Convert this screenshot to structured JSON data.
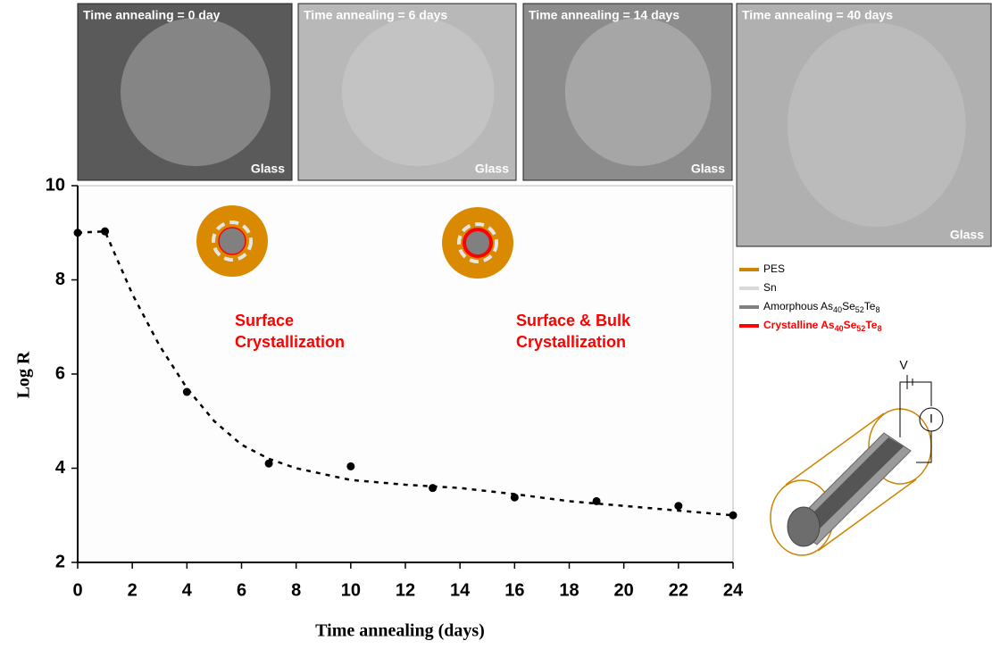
{
  "chart_data": {
    "type": "scatter",
    "xlabel": "Time annealing (days)",
    "ylabel": "Log R",
    "x": [
      0,
      1,
      4,
      7,
      10,
      13,
      16,
      19,
      22,
      24
    ],
    "values": [
      9.0,
      9.03,
      5.62,
      4.1,
      4.04,
      3.58,
      3.38,
      3.3,
      3.2,
      3.0
    ],
    "color": "#000000",
    "fit": {
      "x": [
        0,
        1,
        2,
        3,
        4,
        5,
        6,
        7,
        8,
        10,
        12,
        14,
        16,
        18,
        20,
        22,
        24
      ],
      "values": [
        9.0,
        9.03,
        7.7,
        6.6,
        5.7,
        5.0,
        4.5,
        4.2,
        4.0,
        3.75,
        3.65,
        3.58,
        3.45,
        3.3,
        3.2,
        3.1,
        3.0
      ]
    },
    "xlim": [
      0,
      24
    ],
    "xticks": [
      0,
      2,
      4,
      6,
      8,
      10,
      12,
      14,
      16,
      18,
      20,
      22,
      24
    ],
    "ylim": [
      2,
      10
    ],
    "yticks": [
      2,
      4,
      6,
      8,
      10
    ],
    "annotations": [
      [
        "Surface",
        "Crystallization"
      ],
      [
        "Surface & Bulk",
        "Crystallization"
      ]
    ],
    "images": [
      {
        "title": "Time annealing = 0 day",
        "substrate": "Glass"
      },
      {
        "title": "Time annealing = 6 days",
        "substrate": "Glass"
      },
      {
        "title": "Time annealing = 14 days",
        "substrate": "Glass"
      },
      {
        "title": "Time annealing = 40 days",
        "substrate": "Glass"
      }
    ],
    "legend": [
      {
        "parts": [
          "PES"
        ],
        "color": "#cc8400"
      },
      {
        "parts": [
          "Sn"
        ],
        "color": "#d9d9d9"
      },
      {
        "parts": [
          "Amorphous As",
          "40",
          "Se",
          "52",
          "Te",
          "8"
        ],
        "color": "#808080"
      },
      {
        "parts": [
          "Crystalline As",
          "40",
          "Se",
          "52",
          "Te",
          "8"
        ],
        "color": "#ff0000"
      }
    ],
    "circuit": {
      "voltage": "V",
      "current": "I"
    }
  }
}
